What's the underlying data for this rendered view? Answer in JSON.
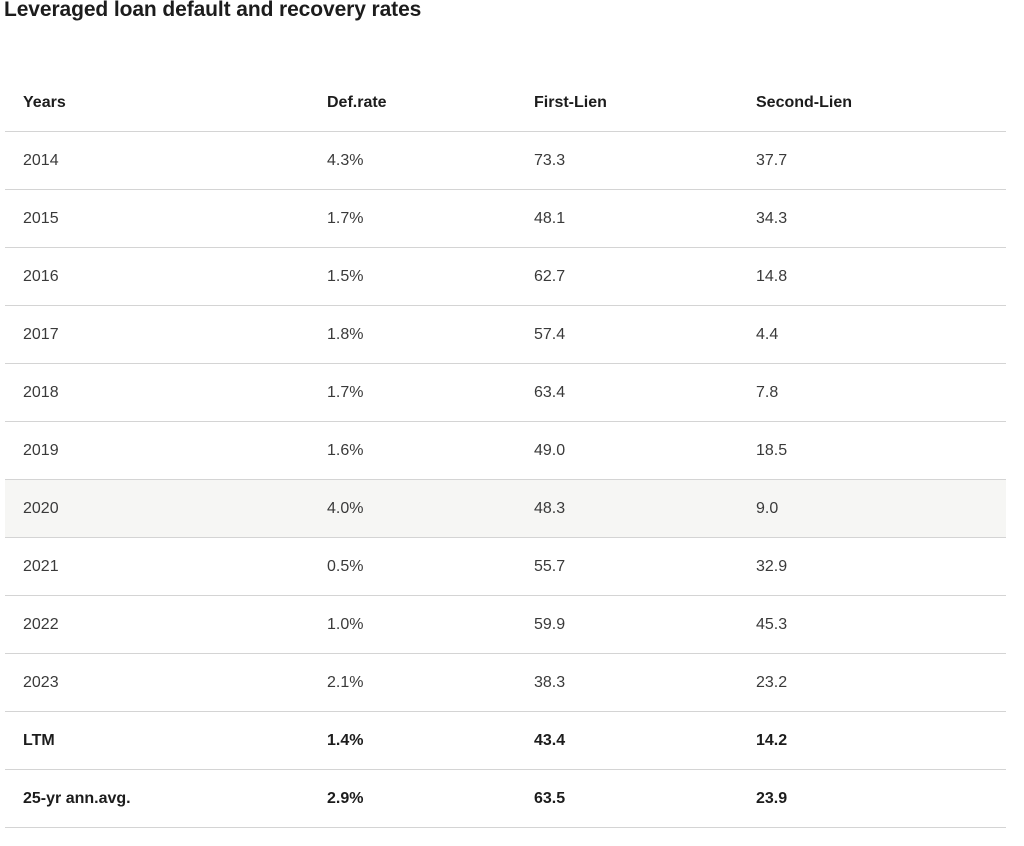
{
  "title": "Leveraged loan default and recovery rates",
  "table": {
    "headers": [
      "Years",
      "Def.rate",
      "First-Lien",
      "Second-Lien"
    ],
    "rows": [
      [
        "2014",
        "4.3%",
        "73.3",
        "37.7"
      ],
      [
        "2015",
        "1.7%",
        "48.1",
        "34.3"
      ],
      [
        "2016",
        "1.5%",
        "62.7",
        "14.8"
      ],
      [
        "2017",
        "1.8%",
        "57.4",
        "4.4"
      ],
      [
        "2018",
        "1.7%",
        "63.4",
        "7.8"
      ],
      [
        "2019",
        "1.6%",
        "49.0",
        "18.5"
      ],
      [
        "2020",
        "4.0%",
        "48.3",
        "9.0"
      ],
      [
        "2021",
        "0.5%",
        "55.7",
        "32.9"
      ],
      [
        "2022",
        "1.0%",
        "59.9",
        "45.3"
      ],
      [
        "2023",
        "2.1%",
        "38.3",
        "23.2"
      ],
      [
        "LTM",
        "1.4%",
        "43.4",
        "14.2"
      ],
      [
        "25-yr ann.avg.",
        "2.9%",
        "63.5",
        "23.9"
      ]
    ]
  }
}
